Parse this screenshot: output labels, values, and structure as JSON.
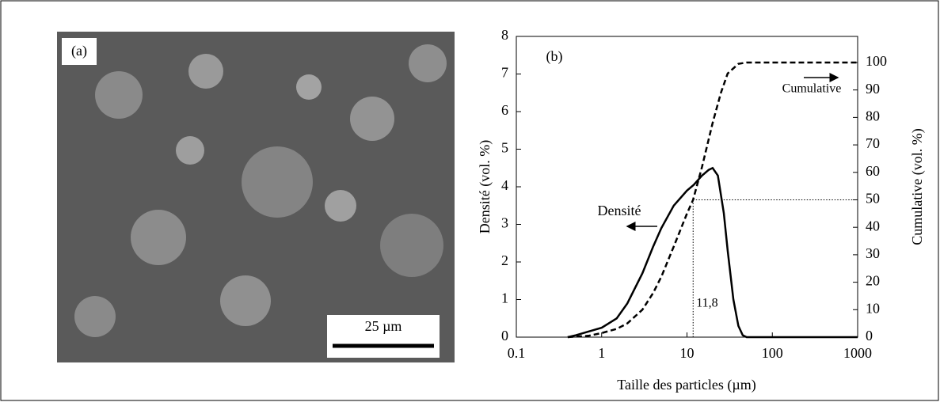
{
  "image": {
    "label": "(a)",
    "scale_bar": "25 µm"
  },
  "chart_data": {
    "type": "line",
    "panel_label": "(b)",
    "x_label": "Taille des particles (µm)",
    "y_label": "Densité (vol. %)",
    "y2_label": "Cumulative (vol. %)",
    "xscale": "log",
    "xlim": [
      0.1,
      1000
    ],
    "xticks": [
      0.1,
      1,
      10,
      100,
      1000
    ],
    "ylim": [
      0,
      8
    ],
    "yticks": [
      0,
      1,
      2,
      3,
      4,
      5,
      6,
      7,
      8
    ],
    "y2lim": [
      0,
      109.5
    ],
    "y2ticks": [
      0,
      10,
      20,
      30,
      40,
      50,
      60,
      70,
      80,
      90,
      100
    ],
    "series": [
      {
        "name": "Densité",
        "color": "#000000",
        "dash": "solid",
        "x": [
          0.4,
          0.5,
          0.7,
          1,
          1.5,
          2,
          3,
          4,
          5,
          7,
          10,
          12,
          15,
          18,
          20,
          23,
          27,
          30,
          35,
          40,
          45,
          50,
          100,
          1000
        ],
        "values": [
          0,
          0.05,
          0.15,
          0.25,
          0.5,
          0.9,
          1.7,
          2.4,
          2.9,
          3.5,
          3.9,
          4.05,
          4.3,
          4.45,
          4.5,
          4.3,
          3.3,
          2.3,
          1.0,
          0.3,
          0.05,
          0,
          0,
          0
        ]
      },
      {
        "name": "Cumulative",
        "color": "#000000",
        "dash": "dashed",
        "axis": "y2",
        "x": [
          0.4,
          0.7,
          1,
          1.5,
          2,
          3,
          4,
          5,
          7,
          10,
          11.8,
          15,
          20,
          25,
          30,
          40,
          50,
          100,
          1000
        ],
        "values": [
          0,
          0.5,
          1.5,
          3,
          5,
          10,
          16,
          22,
          33,
          45,
          50,
          62,
          78,
          89,
          96,
          99.5,
          100,
          100,
          100
        ]
      }
    ],
    "median": {
      "value": 11.8,
      "label": "11,8"
    },
    "median_level": 50
  }
}
